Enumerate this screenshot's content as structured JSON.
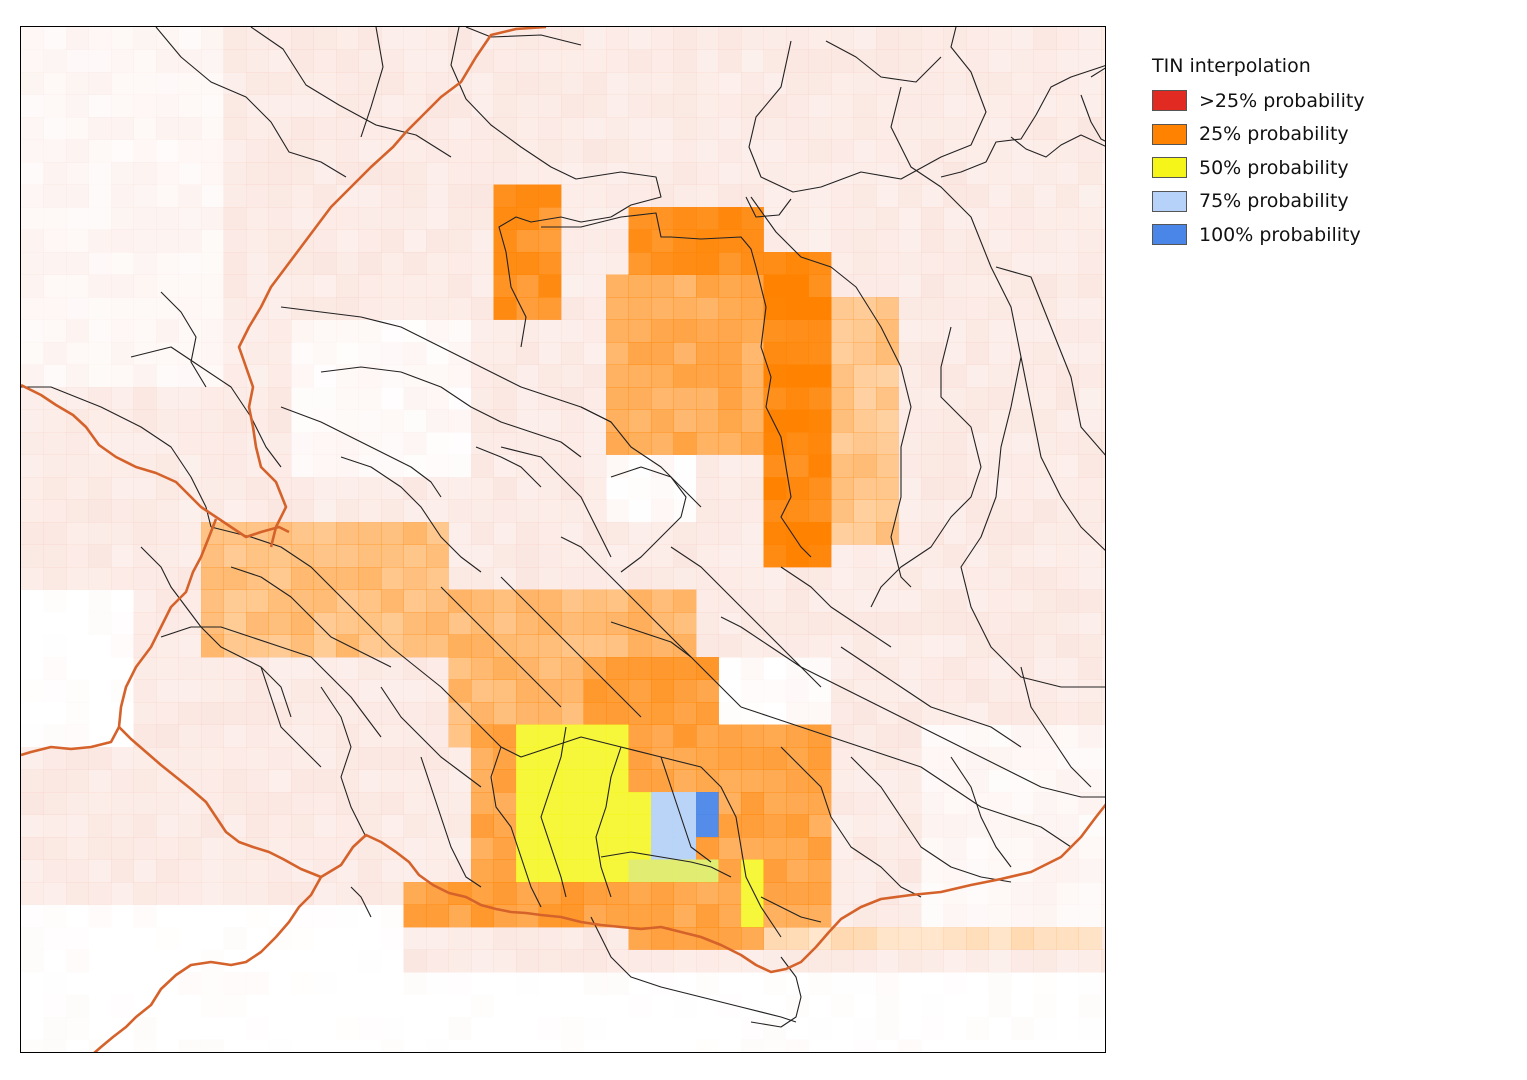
{
  "legend": {
    "title": "TIN interpolation",
    "items": [
      {
        "label": ">25% probability",
        "color": "#e02a22"
      },
      {
        "label": "25% probability",
        "color": "#ff8200"
      },
      {
        "label": "50% probability",
        "color": "#f5f519"
      },
      {
        "label": "75% probability",
        "color": "#b6d2f8"
      },
      {
        "label": "100% probability",
        "color": "#4a86e8"
      }
    ]
  },
  "map": {
    "boundary_color": "#d4622a",
    "line_color": "#222222",
    "base_shade_color": "#f3b9a8"
  }
}
